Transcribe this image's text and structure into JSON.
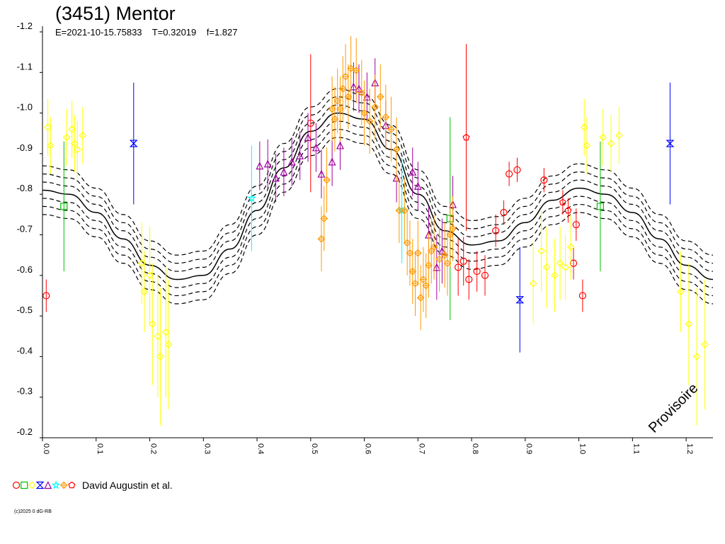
{
  "header": {
    "title": "(3451) Mentor",
    "subtitle": "E=2021-10-15.75833    T=0.32019    f=1.827"
  },
  "legend": {
    "text": "David Augustin et al.",
    "markers": [
      {
        "shape": "circle",
        "color": "#ff0000"
      },
      {
        "shape": "square",
        "color": "#00c000"
      },
      {
        "shape": "diamond",
        "color": "#ffff00"
      },
      {
        "shape": "hourglass",
        "color": "#0000ff"
      },
      {
        "shape": "triangle",
        "color": "#a000a0"
      },
      {
        "shape": "star",
        "color": "#00ffff"
      },
      {
        "shape": "plus-diamond",
        "color": "#ff9900"
      },
      {
        "shape": "pentagon",
        "color": "#ff0000"
      }
    ]
  },
  "copyright": "(c)2025 0 dG-RB",
  "watermark": "Provisoire",
  "chart_data": {
    "type": "scatter",
    "title": "(3451) Mentor",
    "xlabel": "",
    "ylabel": "",
    "xlim": [
      0.0,
      1.25
    ],
    "ylim": [
      -1.2,
      -0.2
    ],
    "x_ticks": [
      0.0,
      0.1,
      0.2,
      0.3,
      0.4,
      0.5,
      0.6,
      0.7,
      0.8,
      0.9,
      1.0,
      1.1,
      1.2
    ],
    "x_tick_labels": [
      "0.0",
      "0.1",
      "0.2",
      "0.3",
      "0.4",
      "0.5",
      "0.6",
      "0.7",
      "0.8",
      "0.9",
      "1.0",
      "1.1",
      "1.2"
    ],
    "y_ticks": [
      -1.2,
      -1.1,
      -1.0,
      -0.9,
      -0.8,
      -0.7,
      -0.6,
      -0.5,
      -0.4,
      -0.3,
      -0.2
    ],
    "y_tick_labels": [
      "-1.2",
      "-1.1",
      "-1.0",
      "-0.9",
      "-0.8",
      "-0.7",
      "-0.6",
      "-0.5",
      "-0.4",
      "-0.3",
      "-0.2"
    ],
    "grid": false,
    "fit_curve": {
      "x": [
        0.0,
        0.05,
        0.1,
        0.15,
        0.2,
        0.25,
        0.3,
        0.35,
        0.4,
        0.45,
        0.5,
        0.55,
        0.6,
        0.65,
        0.7,
        0.75,
        0.8,
        0.85,
        0.9,
        0.95,
        1.0,
        1.05,
        1.1,
        1.15,
        1.2,
        1.25
      ],
      "y": [
        -0.81,
        -0.8,
        -0.755,
        -0.69,
        -0.625,
        -0.59,
        -0.6,
        -0.665,
        -0.76,
        -0.865,
        -0.955,
        -1.0,
        -0.985,
        -0.91,
        -0.8,
        -0.71,
        -0.675,
        -0.685,
        -0.73,
        -0.785,
        -0.815,
        -0.8,
        -0.755,
        -0.69,
        -0.625,
        -0.59
      ],
      "offsets": [
        -0.06,
        -0.04,
        -0.02,
        0.02,
        0.04,
        0.06
      ]
    },
    "series": [
      {
        "marker": "circle",
        "color": "#ff0000",
        "points": [
          {
            "x": 0.007,
            "y": -0.55,
            "err": 0.04
          },
          {
            "x": 0.5,
            "y": -0.975,
            "err": 0.17
          },
          {
            "x": 0.775,
            "y": -0.62,
            "err": 0.07
          },
          {
            "x": 0.785,
            "y": -0.635,
            "err": 0.06
          },
          {
            "x": 0.795,
            "y": -0.59,
            "err": 0.05
          },
          {
            "x": 0.81,
            "y": -0.61,
            "err": 0.05
          },
          {
            "x": 0.825,
            "y": -0.6,
            "err": 0.05
          },
          {
            "x": 0.845,
            "y": -0.71,
            "err": 0.04
          },
          {
            "x": 0.86,
            "y": -0.755,
            "err": 0.03
          },
          {
            "x": 0.87,
            "y": -0.85,
            "err": 0.03
          },
          {
            "x": 0.885,
            "y": -0.86,
            "err": 0.03
          },
          {
            "x": 0.935,
            "y": -0.835,
            "err": 0.03
          },
          {
            "x": 0.995,
            "y": -0.725,
            "err": 0.04
          },
          {
            "x": 0.99,
            "y": -0.63,
            "err": 0.04
          },
          {
            "x": 1.007,
            "y": -0.55,
            "err": 0.04
          }
        ]
      },
      {
        "marker": "square",
        "color": "#00c000",
        "points": [
          {
            "x": 0.04,
            "y": -0.77,
            "err": 0.16
          },
          {
            "x": 0.76,
            "y": -0.74,
            "err": 0.25
          },
          {
            "x": 1.04,
            "y": -0.77,
            "err": 0.16
          }
        ]
      },
      {
        "marker": "diamond",
        "color": "#ffff00",
        "points": [
          {
            "x": 0.01,
            "y": -0.965,
            "err": 0.07
          },
          {
            "x": 0.015,
            "y": -0.92,
            "err": 0.07
          },
          {
            "x": 0.045,
            "y": -0.94,
            "err": 0.07
          },
          {
            "x": 0.055,
            "y": -0.96,
            "err": 0.07
          },
          {
            "x": 0.06,
            "y": -0.925,
            "err": 0.07
          },
          {
            "x": 0.065,
            "y": -0.91,
            "err": 0.07
          },
          {
            "x": 0.075,
            "y": -0.945,
            "err": 0.07
          },
          {
            "x": 0.185,
            "y": -0.63,
            "err": 0.1
          },
          {
            "x": 0.19,
            "y": -0.56,
            "err": 0.1
          },
          {
            "x": 0.2,
            "y": -0.6,
            "err": 0.12
          },
          {
            "x": 0.205,
            "y": -0.48,
            "err": 0.15
          },
          {
            "x": 0.215,
            "y": -0.45,
            "err": 0.15
          },
          {
            "x": 0.22,
            "y": -0.4,
            "err": 0.17
          },
          {
            "x": 0.23,
            "y": -0.46,
            "err": 0.16
          },
          {
            "x": 0.235,
            "y": -0.43,
            "err": 0.16
          },
          {
            "x": 0.915,
            "y": -0.58,
            "err": 0.1
          },
          {
            "x": 0.93,
            "y": -0.66,
            "err": 0.1
          },
          {
            "x": 0.94,
            "y": -0.62,
            "err": 0.1
          },
          {
            "x": 0.955,
            "y": -0.6,
            "err": 0.09
          },
          {
            "x": 0.965,
            "y": -0.63,
            "err": 0.09
          },
          {
            "x": 0.975,
            "y": -0.62,
            "err": 0.08
          },
          {
            "x": 0.985,
            "y": -0.67,
            "err": 0.08
          },
          {
            "x": 1.01,
            "y": -0.965,
            "err": 0.07
          },
          {
            "x": 1.015,
            "y": -0.92,
            "err": 0.07
          },
          {
            "x": 1.045,
            "y": -0.94,
            "err": 0.07
          },
          {
            "x": 1.06,
            "y": -0.925,
            "err": 0.07
          },
          {
            "x": 1.075,
            "y": -0.945,
            "err": 0.07
          },
          {
            "x": 1.19,
            "y": -0.56,
            "err": 0.1
          },
          {
            "x": 1.205,
            "y": -0.48,
            "err": 0.15
          },
          {
            "x": 1.22,
            "y": -0.4,
            "err": 0.17
          },
          {
            "x": 1.235,
            "y": -0.43,
            "err": 0.16
          }
        ]
      },
      {
        "marker": "hourglass",
        "color": "#0000ff",
        "points": [
          {
            "x": 0.17,
            "y": -0.925,
            "err": 0.15
          },
          {
            "x": 0.89,
            "y": -0.54,
            "err": 0.13
          },
          {
            "x": 1.17,
            "y": -0.925,
            "err": 0.15
          }
        ]
      },
      {
        "marker": "triangle",
        "color": "#a000a0",
        "points": [
          {
            "x": 0.405,
            "y": -0.87,
            "err": 0.06
          },
          {
            "x": 0.42,
            "y": -0.875,
            "err": 0.06
          },
          {
            "x": 0.435,
            "y": -0.84,
            "err": 0.06
          },
          {
            "x": 0.45,
            "y": -0.855,
            "err": 0.06
          },
          {
            "x": 0.465,
            "y": -0.88,
            "err": 0.06
          },
          {
            "x": 0.48,
            "y": -0.895,
            "err": 0.06
          },
          {
            "x": 0.495,
            "y": -0.94,
            "err": 0.06
          },
          {
            "x": 0.51,
            "y": -0.915,
            "err": 0.06
          },
          {
            "x": 0.52,
            "y": -0.85,
            "err": 0.06
          },
          {
            "x": 0.54,
            "y": -0.88,
            "err": 0.06
          },
          {
            "x": 0.555,
            "y": -0.92,
            "err": 0.06
          },
          {
            "x": 0.58,
            "y": -1.065,
            "err": 0.06
          },
          {
            "x": 0.59,
            "y": -1.06,
            "err": 0.06
          },
          {
            "x": 0.605,
            "y": -1.04,
            "err": 0.06
          },
          {
            "x": 0.62,
            "y": -1.075,
            "err": 0.06
          },
          {
            "x": 0.64,
            "y": -0.97,
            "err": 0.06
          },
          {
            "x": 0.66,
            "y": -0.84,
            "err": 0.06
          },
          {
            "x": 0.69,
            "y": -0.855,
            "err": 0.06
          },
          {
            "x": 0.7,
            "y": -0.82,
            "err": 0.06
          },
          {
            "x": 0.72,
            "y": -0.7,
            "err": 0.07
          },
          {
            "x": 0.735,
            "y": -0.62,
            "err": 0.08
          },
          {
            "x": 0.745,
            "y": -0.66,
            "err": 0.08
          },
          {
            "x": 0.765,
            "y": -0.775,
            "err": 0.07
          }
        ]
      },
      {
        "marker": "star",
        "color": "#00ffff",
        "points": [
          {
            "x": 0.39,
            "y": -0.79,
            "err": 0.13
          },
          {
            "x": 0.67,
            "y": -0.76,
            "err": 0.13
          }
        ]
      },
      {
        "marker": "plus-diamond",
        "color": "#ff9900",
        "points": [
          {
            "x": 0.52,
            "y": -0.69,
            "err": 0.08
          },
          {
            "x": 0.525,
            "y": -0.74,
            "err": 0.08
          },
          {
            "x": 0.53,
            "y": -0.835,
            "err": 0.08
          },
          {
            "x": 0.54,
            "y": -1.01,
            "err": 0.08
          },
          {
            "x": 0.545,
            "y": -0.985,
            "err": 0.08
          },
          {
            "x": 0.55,
            "y": -1.03,
            "err": 0.08
          },
          {
            "x": 0.555,
            "y": -1.01,
            "err": 0.08
          },
          {
            "x": 0.56,
            "y": -1.06,
            "err": 0.08
          },
          {
            "x": 0.565,
            "y": -1.09,
            "err": 0.08
          },
          {
            "x": 0.57,
            "y": -1.04,
            "err": 0.08
          },
          {
            "x": 0.575,
            "y": -1.11,
            "err": 0.08
          },
          {
            "x": 0.585,
            "y": -1.105,
            "err": 0.08
          },
          {
            "x": 0.595,
            "y": -1.05,
            "err": 0.08
          },
          {
            "x": 0.6,
            "y": -1.0,
            "err": 0.08
          },
          {
            "x": 0.61,
            "y": -0.98,
            "err": 0.08
          },
          {
            "x": 0.62,
            "y": -1.015,
            "err": 0.08
          },
          {
            "x": 0.63,
            "y": -1.04,
            "err": 0.08
          },
          {
            "x": 0.64,
            "y": -0.99,
            "err": 0.08
          },
          {
            "x": 0.65,
            "y": -0.96,
            "err": 0.08
          },
          {
            "x": 0.66,
            "y": -0.91,
            "err": 0.08
          },
          {
            "x": 0.665,
            "y": -0.76,
            "err": 0.08
          },
          {
            "x": 0.675,
            "y": -0.76,
            "err": 0.08
          },
          {
            "x": 0.68,
            "y": -0.68,
            "err": 0.08
          },
          {
            "x": 0.685,
            "y": -0.655,
            "err": 0.08
          },
          {
            "x": 0.69,
            "y": -0.61,
            "err": 0.08
          },
          {
            "x": 0.695,
            "y": -0.58,
            "err": 0.08
          },
          {
            "x": 0.7,
            "y": -0.655,
            "err": 0.08
          },
          {
            "x": 0.705,
            "y": -0.545,
            "err": 0.08
          },
          {
            "x": 0.71,
            "y": -0.59,
            "err": 0.08
          },
          {
            "x": 0.715,
            "y": -0.575,
            "err": 0.08
          },
          {
            "x": 0.72,
            "y": -0.625,
            "err": 0.08
          },
          {
            "x": 0.725,
            "y": -0.66,
            "err": 0.08
          },
          {
            "x": 0.73,
            "y": -0.67,
            "err": 0.08
          },
          {
            "x": 0.74,
            "y": -0.64,
            "err": 0.08
          },
          {
            "x": 0.75,
            "y": -0.65,
            "err": 0.08
          },
          {
            "x": 0.755,
            "y": -0.63,
            "err": 0.08
          },
          {
            "x": 0.76,
            "y": -0.7,
            "err": 0.08
          },
          {
            "x": 0.765,
            "y": -0.715,
            "err": 0.08
          }
        ]
      },
      {
        "marker": "pentagon",
        "color": "#ff0000",
        "points": [
          {
            "x": 0.79,
            "y": -0.94,
            "err": 0.23
          },
          {
            "x": 0.97,
            "y": -0.78,
            "err": 0.03
          },
          {
            "x": 0.98,
            "y": -0.76,
            "err": 0.03
          }
        ]
      }
    ]
  }
}
